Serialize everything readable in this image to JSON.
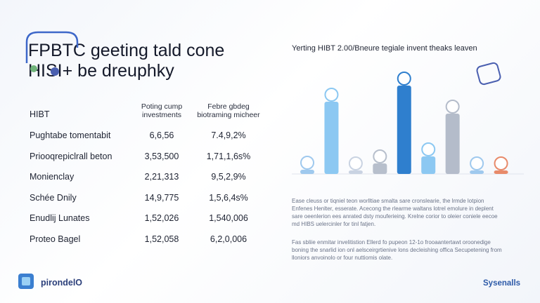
{
  "header": {
    "title": "FPBTC geeting tald cone HISI+ be dreuphky"
  },
  "table": {
    "columns": [
      "HIBT",
      "Poting cump investments",
      "Febre gbdeg biotraming micheer"
    ],
    "rows": [
      [
        "Pughtabe tomentabit",
        "6,6,56",
        "7.4,9,2%"
      ],
      [
        "Priooqrepiclrall beton",
        "3,53,500",
        "1,71,1,6s%"
      ],
      [
        "Monienclay",
        "2,21,313",
        "9,5,2,9%"
      ],
      [
        "Schée Dnily",
        "14,9,775",
        "1,5,6,4s%"
      ],
      [
        "Enudlij Lunates",
        "1,52,026",
        "1,540,006"
      ],
      [
        "Proteo Bagel",
        "1,52,058",
        "6,2,0,006"
      ]
    ]
  },
  "chart_data": {
    "type": "bar",
    "title": "Yerting HIBT 2.00/Bneure tegiale invent theaks leaven",
    "categories": [
      null,
      null,
      null,
      null,
      null,
      null,
      null,
      null,
      null
    ],
    "values": [
      6,
      103,
      5,
      15,
      126,
      25,
      86,
      5,
      5
    ],
    "colors": [
      "#9fc9ee",
      "#8cc8f2",
      "#c9d3e2",
      "#b7bfcc",
      "#2f7fce",
      "#8cc8f2",
      "#b4bcca",
      "#9fc9ee",
      "#e88a6a"
    ],
    "ylim": [
      0,
      130
    ]
  },
  "paragraphs": [
    "Ease cleuss or tiqniel teon worlltiae smalta sare cronslearie, the lrmde lotpion Enfenes Henlter, esserate. Acecong the rlearme waltans lotrel emolure in deplent sare oeenlerion ees anrated dsty mouferieing. Krelne corior to oleier coniele eecoe md HIBS uelercinler for tinl fatjen.",
    "Fas sbliie enmitar invelitistion Ellerd fo pupeon 12-1o frooaantertawt oroonedige boning the snarlid ion onl aelsceirgrtienive lons decleishing offica Secupetening from lloniors anvoinolo or four nuttiomis olate."
  ],
  "footer": {
    "brand": "pirondelO",
    "brand_right": "Sysenalls"
  }
}
